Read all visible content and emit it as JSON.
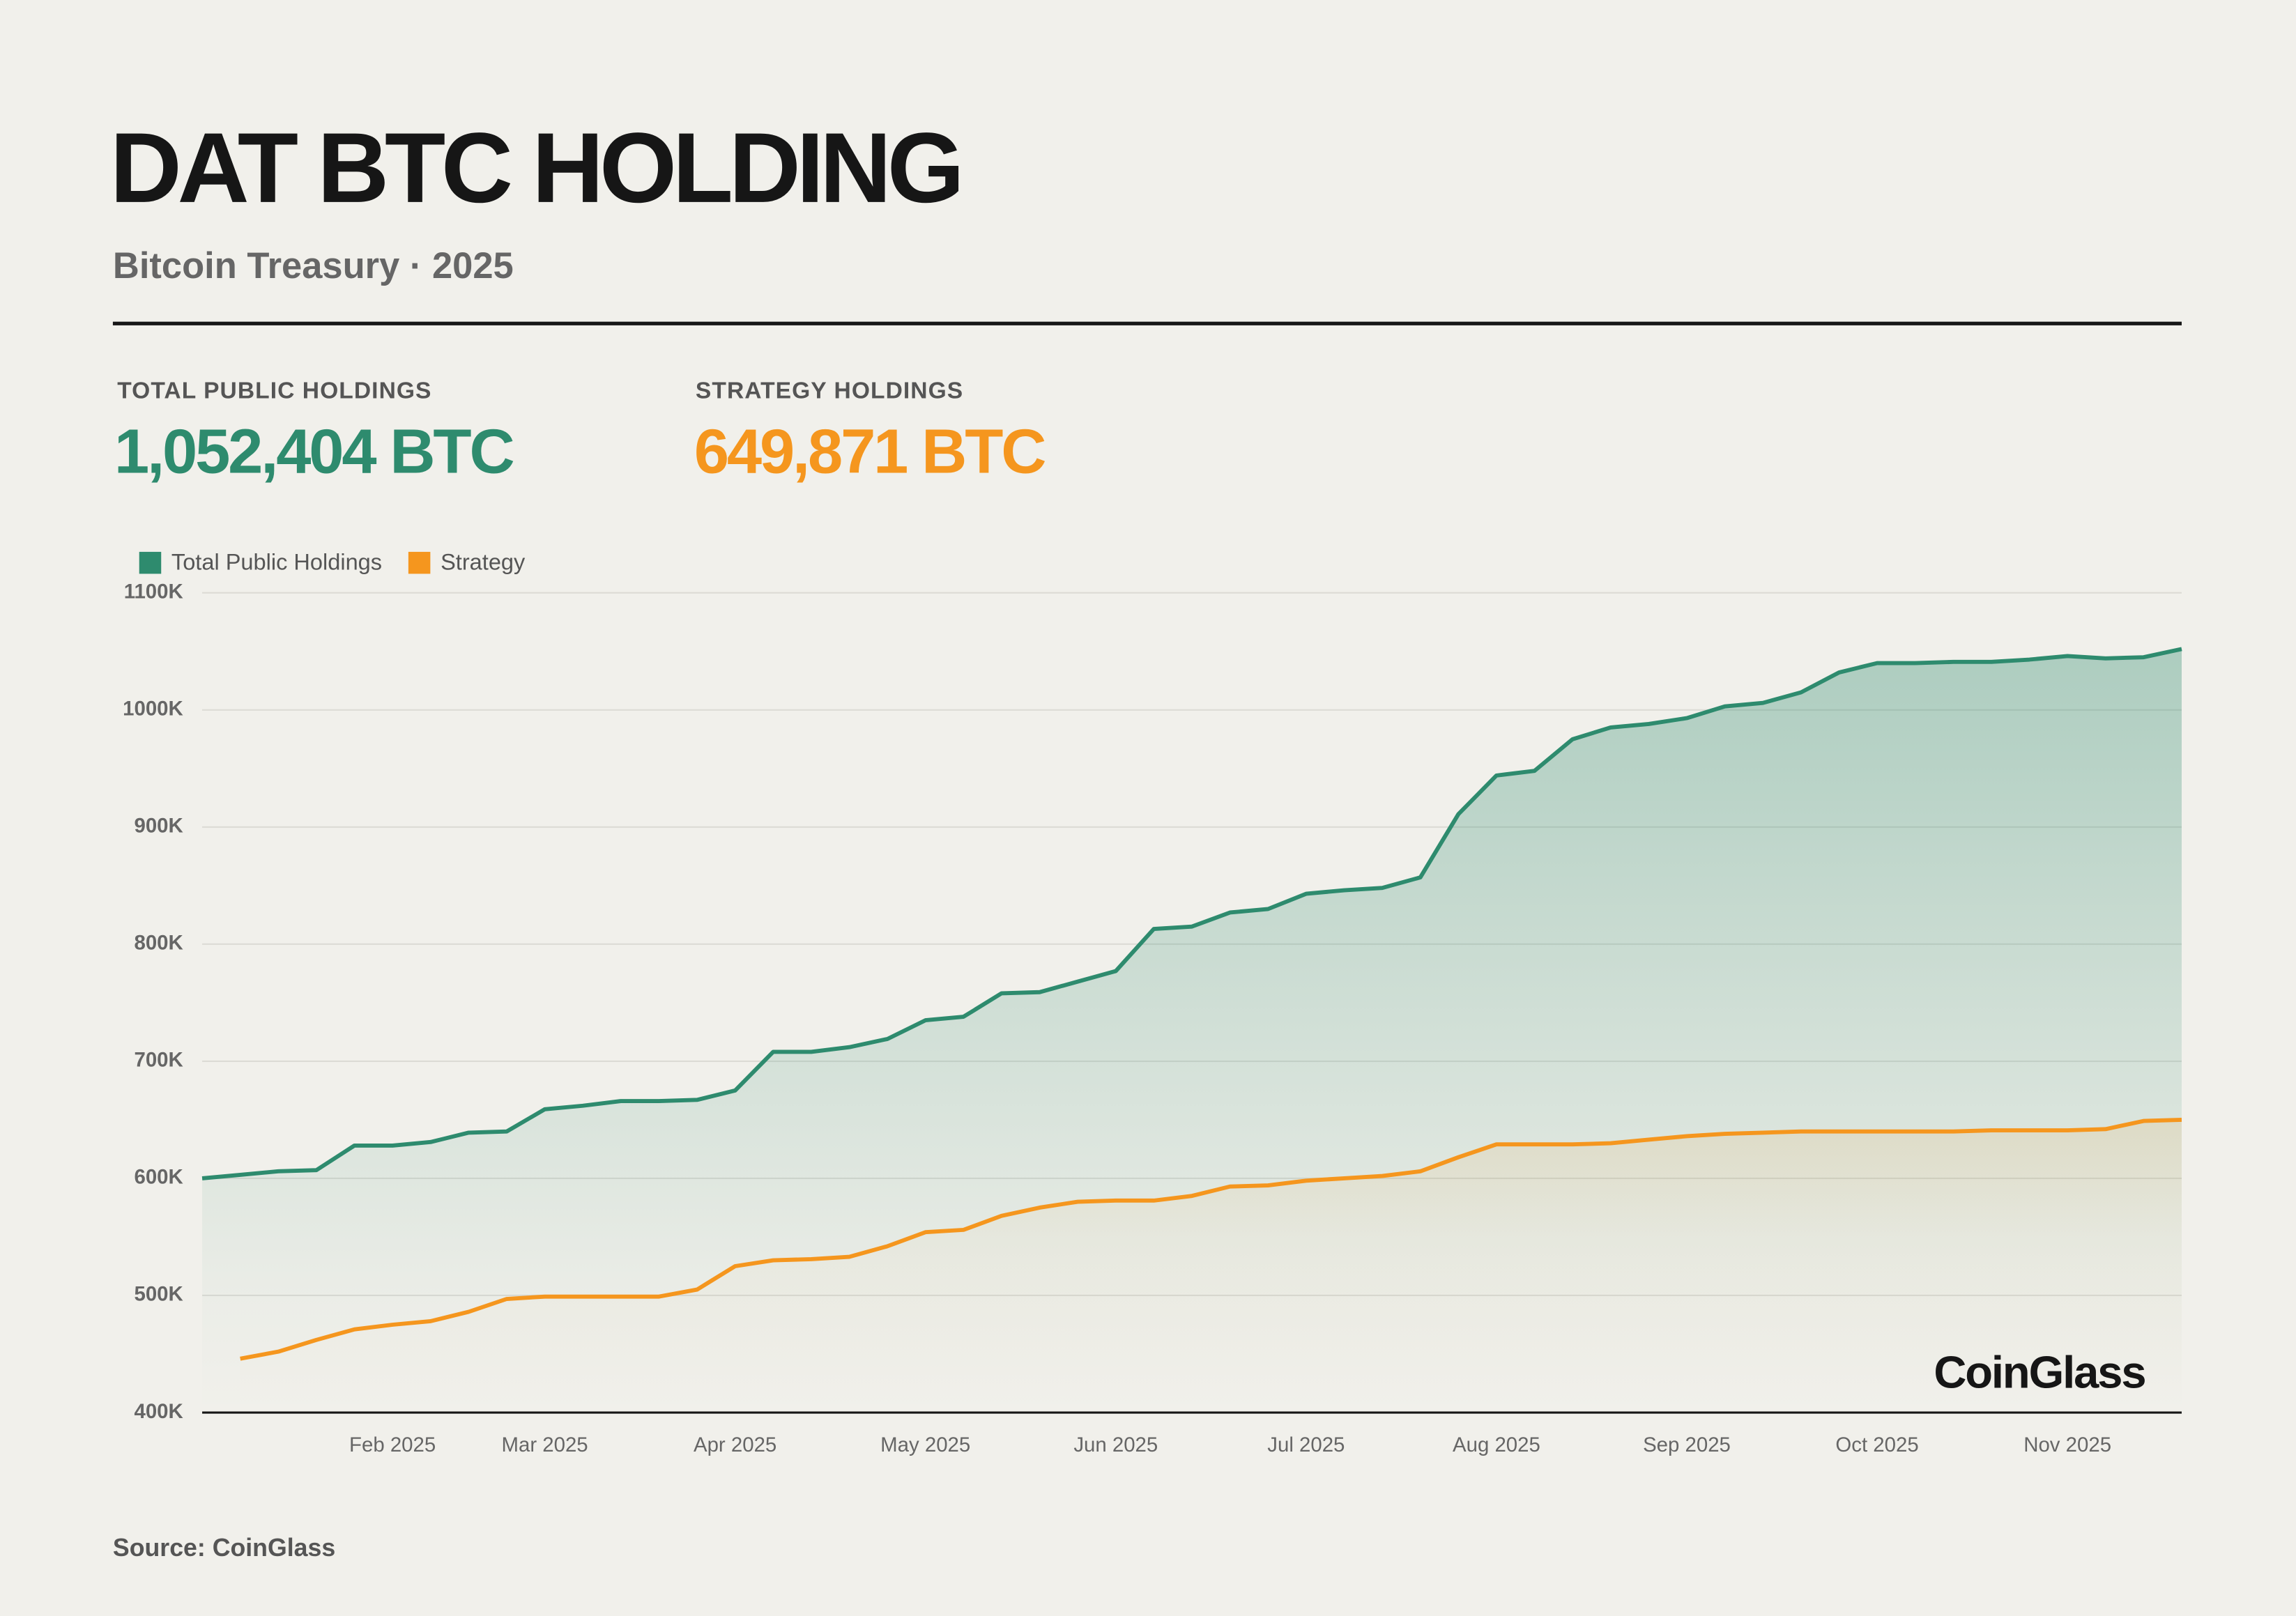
{
  "header": {
    "title": "DAT BTC HOLDING",
    "subtitle": "Bitcoin Treasury · 2025"
  },
  "kpis": [
    {
      "label": "TOTAL PUBLIC HOLDINGS",
      "value": "1,052,404 BTC"
    },
    {
      "label": "STRATEGY HOLDINGS",
      "value": "649,871 BTC"
    }
  ],
  "brand": "CoinGlass",
  "source": "Source: CoinGlass",
  "chart_data": {
    "type": "area",
    "categories": [
      null,
      null,
      null,
      null,
      null,
      "Feb 2025",
      null,
      null,
      null,
      "Mar 2025",
      null,
      null,
      null,
      null,
      "Apr 2025",
      null,
      null,
      null,
      null,
      "May 2025",
      null,
      null,
      null,
      null,
      "Jun 2025",
      null,
      null,
      null,
      null,
      "Jul 2025",
      null,
      null,
      null,
      null,
      "Aug 2025",
      null,
      null,
      null,
      null,
      "Sep 2025",
      null,
      null,
      null,
      null,
      "Oct 2025",
      null,
      null,
      null,
      null,
      "Nov 2025",
      null,
      null,
      null
    ],
    "series": [
      {
        "name": "Total Public Holdings",
        "color": "#2e8b6e",
        "values": [
          600,
          603,
          606,
          607,
          628,
          628,
          631,
          639,
          640,
          659,
          662,
          666,
          666,
          667,
          675,
          708,
          708,
          712,
          719,
          735,
          738,
          758,
          759,
          768,
          777,
          813,
          815,
          827,
          830,
          843,
          846,
          848,
          857,
          911,
          944,
          948,
          975,
          985,
          988,
          993,
          1003,
          1006,
          1015,
          1032,
          1040,
          1040,
          1041,
          1041,
          1043,
          1046,
          1044,
          1045,
          1052
        ]
      },
      {
        "name": "Strategy",
        "color": "#f5961e",
        "values": [
          null,
          446,
          452,
          462,
          471,
          475,
          478,
          486,
          497,
          499,
          499,
          499,
          499,
          505,
          525,
          530,
          531,
          533,
          542,
          554,
          556,
          568,
          575,
          580,
          581,
          581,
          585,
          593,
          594,
          598,
          600,
          602,
          606,
          618,
          629,
          629,
          629,
          630,
          633,
          636,
          638,
          639,
          640,
          640,
          640,
          640,
          640,
          641,
          641,
          641,
          642,
          649,
          650
        ]
      }
    ],
    "ylim": [
      400,
      1100
    ],
    "yticks": [
      {
        "value": 400,
        "label": "400K"
      },
      {
        "value": 500,
        "label": "500K"
      },
      {
        "value": 600,
        "label": "600K"
      },
      {
        "value": 700,
        "label": "700K"
      },
      {
        "value": 800,
        "label": "800K"
      },
      {
        "value": 900,
        "label": "900K"
      },
      {
        "value": 1000,
        "label": "1000K"
      },
      {
        "value": 1100,
        "label": "1100K"
      }
    ],
    "grid": true
  }
}
